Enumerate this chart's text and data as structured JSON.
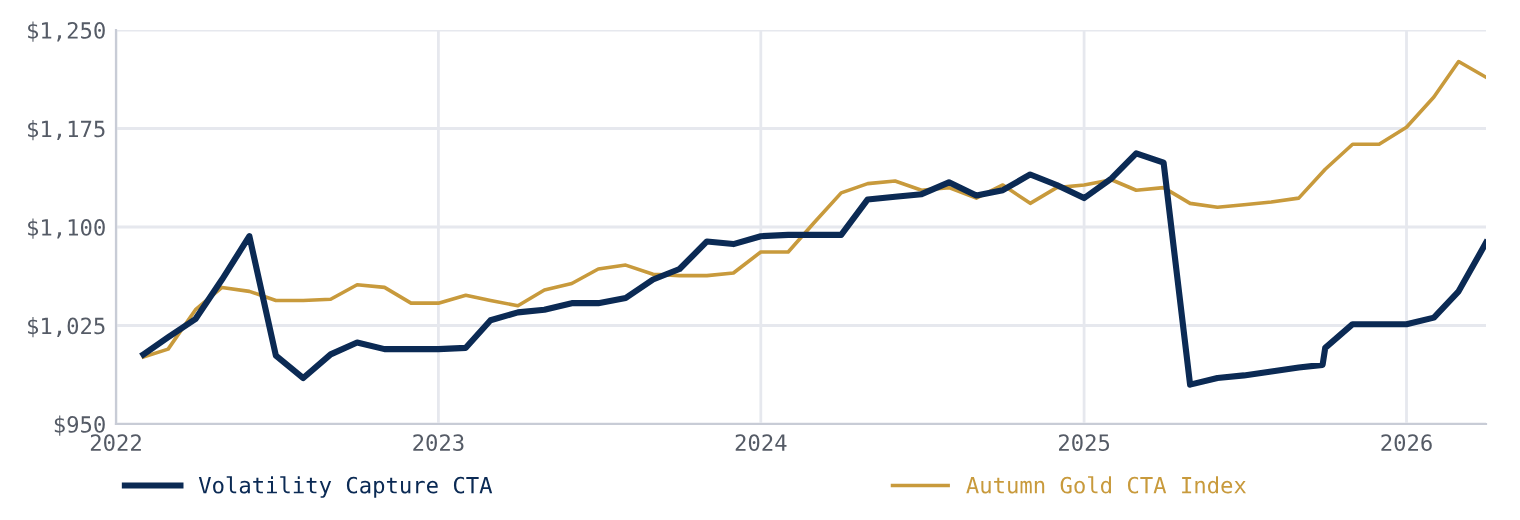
{
  "chart_data": {
    "type": "line",
    "x": [
      "2022-02",
      "2022-03",
      "2022-04",
      "2022-05",
      "2022-06",
      "2022-07",
      "2022-08",
      "2022-09",
      "2022-10",
      "2022-11",
      "2022-12",
      "2023-01",
      "2023-02",
      "2023-03",
      "2023-04",
      "2023-05",
      "2023-06",
      "2023-07",
      "2023-08",
      "2023-09",
      "2023-10",
      "2023-11",
      "2023-12",
      "2024-01",
      "2024-02",
      "2024-03",
      "2024-04",
      "2024-05",
      "2024-06",
      "2024-07",
      "2024-08",
      "2024-09",
      "2024-10",
      "2024-11",
      "2024-12",
      "2025-01",
      "2025-02",
      "2025-03",
      "2025-04",
      "2025-05",
      "2025-06",
      "2025-07",
      "2025-08",
      "2025-09",
      "2025-09-28",
      "2025-10",
      "2025-11",
      "2025-12",
      "2026-01",
      "2026-02",
      "2026-03",
      "2026-04"
    ],
    "series": [
      {
        "name": "Volatility Capture CTA",
        "color": "#0b2a54",
        "values": [
          1003,
          1016,
          1030,
          1060,
          1093,
          1002,
          985,
          1003,
          1012,
          1007,
          1007,
          1007,
          1008,
          1029,
          1035,
          1037,
          1042,
          1042,
          1046,
          1060,
          1068,
          1089,
          1087,
          1093,
          1094,
          1094,
          1094,
          1121,
          1123,
          1125,
          1134,
          1124,
          1128,
          1140,
          1132,
          1122,
          1137,
          1156,
          1149,
          980,
          985,
          987,
          990,
          993,
          995,
          1008,
          1026,
          1026,
          1026,
          1031,
          1051,
          1088
        ]
      },
      {
        "name": "Autumn Gold CTA Index",
        "color": "#c89a3c",
        "x": [
          "2022-02",
          "2022-03",
          "2022-04",
          "2022-05",
          "2022-06",
          "2022-07",
          "2022-08",
          "2022-09",
          "2022-10",
          "2022-11",
          "2022-12",
          "2023-01",
          "2023-02",
          "2023-03",
          "2023-04",
          "2023-05",
          "2023-06",
          "2023-07",
          "2023-08",
          "2023-09",
          "2023-10",
          "2023-11",
          "2023-12",
          "2024-01",
          "2024-02",
          "2024-03",
          "2024-04",
          "2024-05",
          "2024-06",
          "2024-07",
          "2024-08",
          "2024-09",
          "2024-10",
          "2024-11",
          "2024-12",
          "2025-01",
          "2025-02",
          "2025-03",
          "2025-04",
          "2025-05",
          "2025-06",
          "2025-07",
          "2025-08",
          "2025-09",
          "2025-10",
          "2025-11",
          "2025-12",
          "2026-01",
          "2026-02",
          "2026-03",
          "2026-04"
        ],
        "values": [
          1001,
          1007,
          1037,
          1054,
          1051,
          1044,
          1044,
          1045,
          1056,
          1054,
          1042,
          1042,
          1048,
          1044,
          1040,
          1052,
          1057,
          1068,
          1071,
          1064,
          1063,
          1063,
          1065,
          1081,
          1081,
          1103,
          1126,
          1133,
          1135,
          1128,
          1130,
          1122,
          1132,
          1118,
          1130,
          1132,
          1136,
          1128,
          1130,
          1118,
          1115,
          1117,
          1119,
          1122,
          1144,
          1163,
          1163,
          1176,
          1199,
          1226,
          1214
        ]
      }
    ],
    "xlim": [
      "2022-01",
      "2026-04"
    ],
    "xticks": [
      {
        "value": "2022-01",
        "label": "2022"
      },
      {
        "value": "2023-01",
        "label": "2023"
      },
      {
        "value": "2024-01",
        "label": "2024"
      },
      {
        "value": "2025-01",
        "label": "2025"
      },
      {
        "value": "2026-01",
        "label": "2026"
      }
    ],
    "ylim": [
      950,
      1250
    ],
    "yticks": [
      {
        "value": 950,
        "label": "$950"
      },
      {
        "value": 1025,
        "label": "$1,025"
      },
      {
        "value": 1100,
        "label": "$1,100"
      },
      {
        "value": 1175,
        "label": "$1,175"
      },
      {
        "value": 1250,
        "label": "$1,250"
      }
    ],
    "grid": true,
    "legend": "bottom",
    "marker": "none",
    "line_style": "solid"
  }
}
